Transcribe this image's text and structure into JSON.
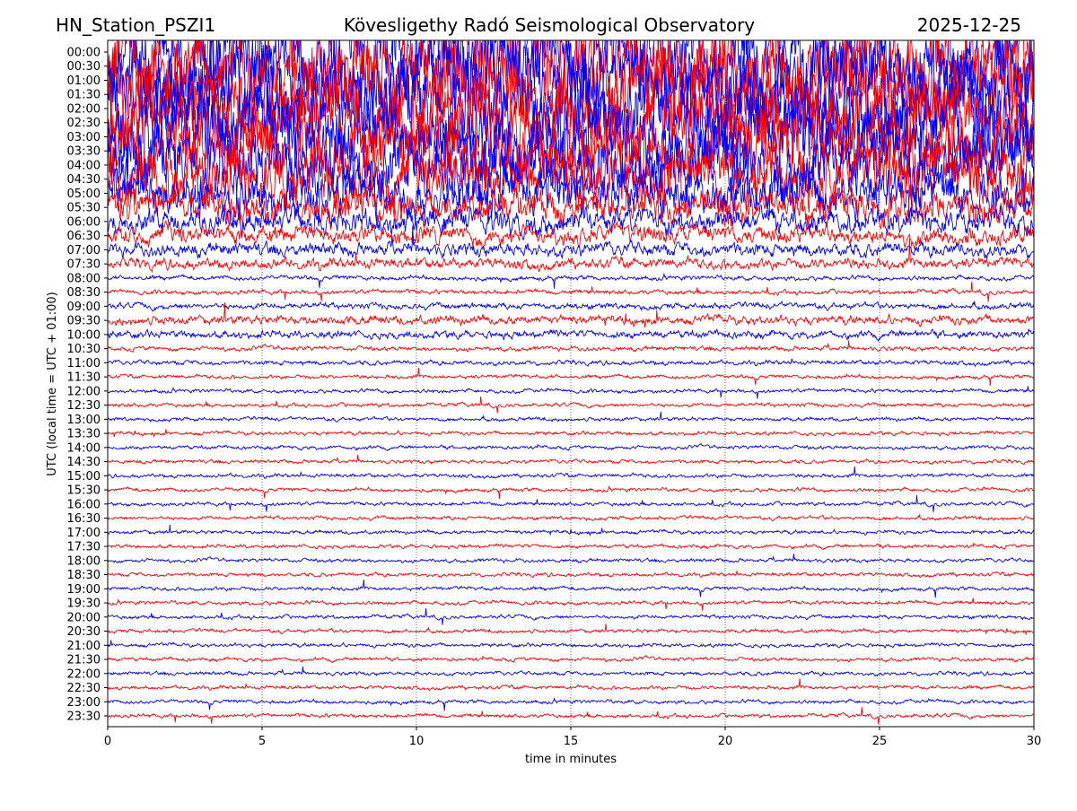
{
  "chart_data": {
    "type": "line",
    "title_left": "HN_Station_PSZI1",
    "title_center": "Kövesligethy Radó Seismological Observatory",
    "title_right": "2025-12-25",
    "xlabel": "time in minutes",
    "ylabel": "UTC (local time = UTC + 01:00)",
    "xlim": [
      0,
      30
    ],
    "xticks": [
      "0",
      "5",
      "10",
      "15",
      "20",
      "25",
      "30"
    ],
    "grid": "vertical dotted",
    "colors": [
      "#0000ff",
      "#ff0000"
    ],
    "rows": [
      "00:00",
      "00:30",
      "01:00",
      "01:30",
      "02:00",
      "02:30",
      "03:00",
      "03:30",
      "04:00",
      "04:30",
      "05:00",
      "05:30",
      "06:00",
      "06:30",
      "07:00",
      "07:30",
      "08:00",
      "08:30",
      "09:00",
      "09:30",
      "10:00",
      "10:30",
      "11:00",
      "11:30",
      "12:00",
      "12:30",
      "13:00",
      "13:30",
      "14:00",
      "14:30",
      "15:00",
      "15:30",
      "16:00",
      "16:30",
      "17:00",
      "17:30",
      "18:00",
      "18:30",
      "19:00",
      "19:30",
      "20:00",
      "20:30",
      "21:00",
      "21:30",
      "22:00",
      "22:30",
      "23:00",
      "23:30"
    ],
    "relative_amplitude": [
      60,
      60,
      60,
      60,
      60,
      58,
      55,
      50,
      45,
      40,
      30,
      22,
      16,
      12,
      9,
      7,
      3,
      3,
      4,
      6,
      5,
      3,
      3,
      2.5,
      2.5,
      2.5,
      2.5,
      2.5,
      2.5,
      2.5,
      2.5,
      2.5,
      2.5,
      2.5,
      2.5,
      2.5,
      2.5,
      2.5,
      2.5,
      2.5,
      2.5,
      2.5,
      2.5,
      2.5,
      2.5,
      2.5,
      2.5,
      2.5
    ]
  }
}
